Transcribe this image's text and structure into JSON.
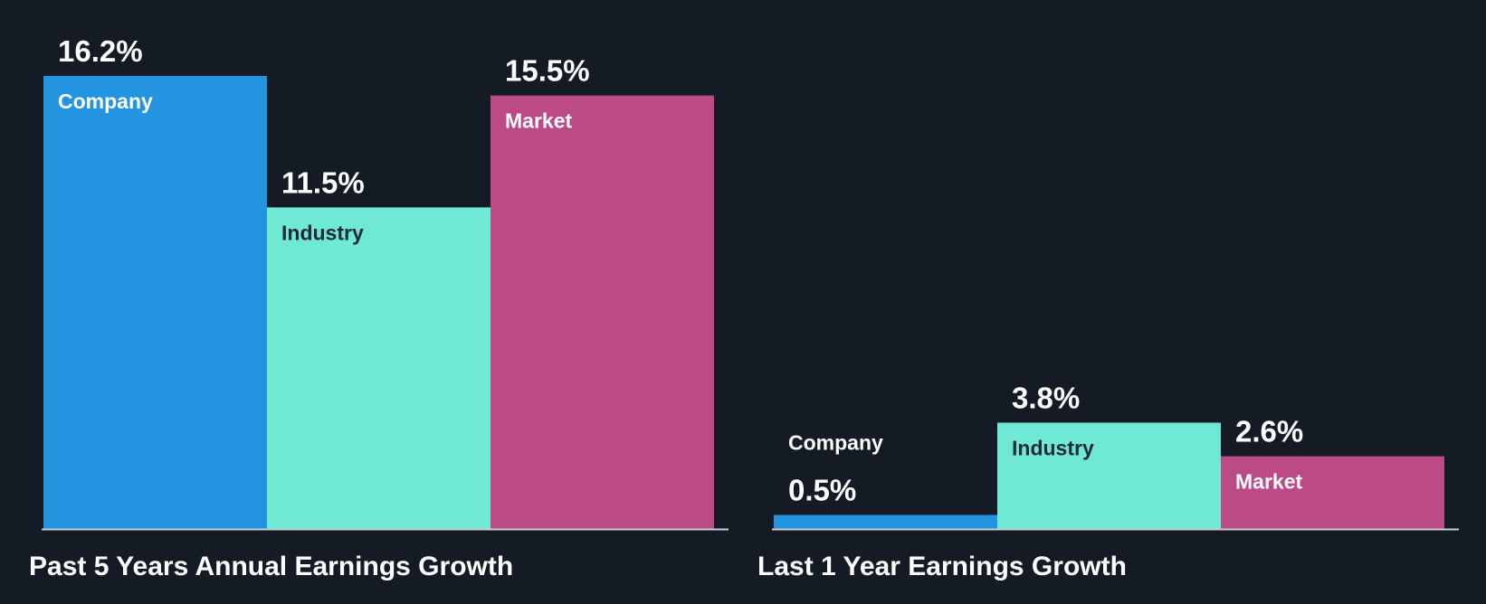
{
  "chart_data": [
    {
      "type": "bar",
      "title": "Past 5 Years Annual Earnings Growth",
      "unit": "%",
      "categories": [
        "Company",
        "Industry",
        "Market"
      ],
      "values": [
        16.2,
        11.5,
        15.5
      ],
      "value_labels": [
        "16.2%",
        "11.5%",
        "15.5%"
      ],
      "colors": [
        "#2394df",
        "#6fe8d6",
        "#bb4a87"
      ],
      "label_colors": [
        "#ffffff",
        "#1e2a36",
        "#ffffff"
      ],
      "xlabel": "",
      "ylabel": "",
      "ylim": [
        0,
        16.2
      ],
      "grid": false,
      "legend": "none"
    },
    {
      "type": "bar",
      "title": "Last 1 Year Earnings Growth",
      "unit": "%",
      "categories": [
        "Company",
        "Industry",
        "Market"
      ],
      "values": [
        0.5,
        3.8,
        2.6
      ],
      "value_labels": [
        "0.5%",
        "3.8%",
        "2.6%"
      ],
      "colors": [
        "#2394df",
        "#6fe8d6",
        "#bb4a87"
      ],
      "label_colors": [
        "#ffffff",
        "#1e2a36",
        "#ffffff"
      ],
      "xlabel": "",
      "ylabel": "",
      "ylim": [
        0,
        16.2
      ],
      "grid": false,
      "legend": "none"
    }
  ],
  "theme": {
    "background": "#151b24",
    "baseline": "#c9ced4",
    "text": "#ffffff"
  }
}
